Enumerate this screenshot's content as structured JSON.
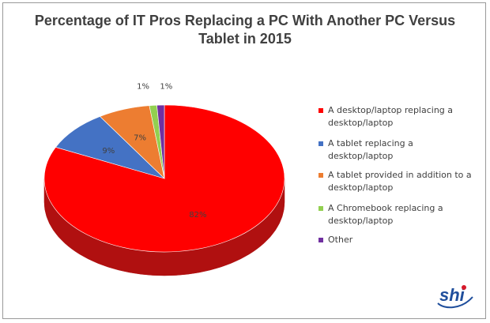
{
  "top_note": "",
  "chart_data": {
    "type": "pie",
    "title": "Percentage of IT Pros Replacing a PC With Another PC Versus Tablet in 2015",
    "title_lines": [
      "Percentage of IT Pros Replacing a PC With Another PC Versus",
      "Tablet in 2015"
    ],
    "categories": [
      "A desktop/laptop replacing a desktop/laptop",
      "A tablet replacing a desktop/laptop",
      "A tablet provided in addition to a desktop/laptop",
      "A Chromebook replacing a desktop/laptop",
      "Other"
    ],
    "legend_lines": [
      [
        "A desktop/laptop replacing a",
        "desktop/laptop"
      ],
      [
        "A tablet replacing a desktop/laptop"
      ],
      [
        "A tablet provided in addition to a",
        "desktop/laptop"
      ],
      [
        "A Chromebook replacing a",
        "desktop/laptop"
      ],
      [
        "Other"
      ]
    ],
    "values": [
      82,
      9,
      7,
      1,
      1
    ],
    "data_labels": [
      "82%",
      "9%",
      "7%",
      "1%",
      "1%"
    ],
    "colors": [
      "#ff0000",
      "#4472c4",
      "#ed7d31",
      "#92d050",
      "#7030a0"
    ],
    "side_colors": [
      "#b01010",
      "#2e4f8c",
      "#a9561f",
      "#5f8f30",
      "#4b1f6d"
    ],
    "style": "3d",
    "legend_position": "right"
  },
  "logo": {
    "text": "shi",
    "color": "#1f4e9c",
    "accent": "#d7192a"
  }
}
